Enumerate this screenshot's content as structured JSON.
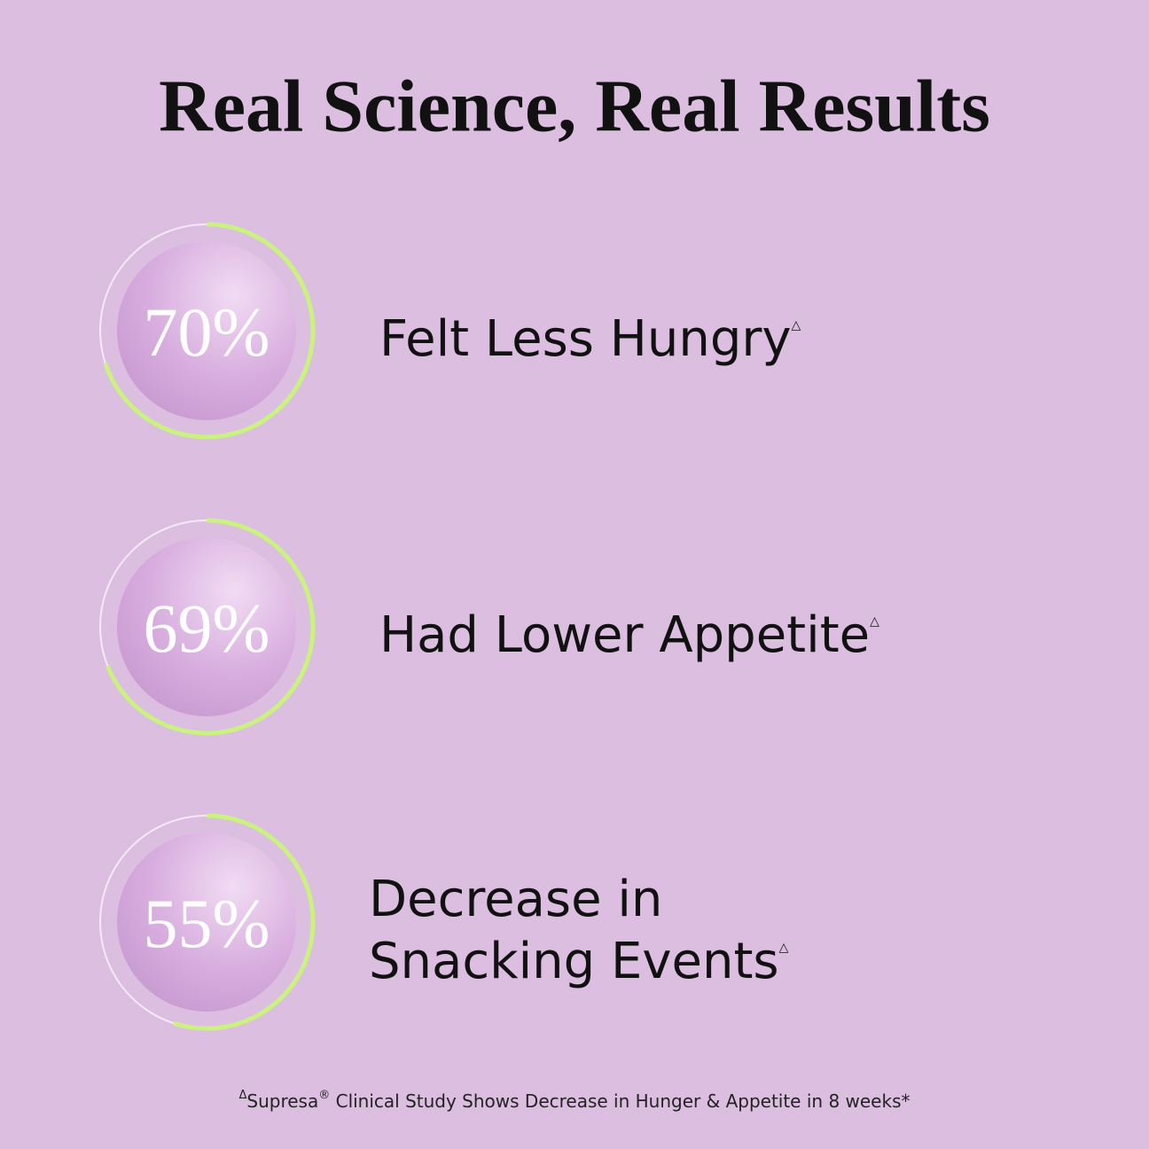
{
  "title": "Real Science, Real Results",
  "stats": [
    {
      "value": 70,
      "value_label": "70%",
      "label_lines": [
        "Felt Less Hungry"
      ],
      "mark": "△"
    },
    {
      "value": 69,
      "value_label": "69%",
      "label_lines": [
        "Had Lower Appetite"
      ],
      "mark": "△"
    },
    {
      "value": 55,
      "value_label": "55%",
      "label_lines": [
        "Decrease in",
        "Snacking Events"
      ],
      "mark": "△"
    }
  ],
  "footnote": {
    "mark": "Δ",
    "brand": "Supresa",
    "reg": "®",
    "text": " Clinical Study Shows Decrease in Hunger & Appetite in 8 weeks*"
  }
}
